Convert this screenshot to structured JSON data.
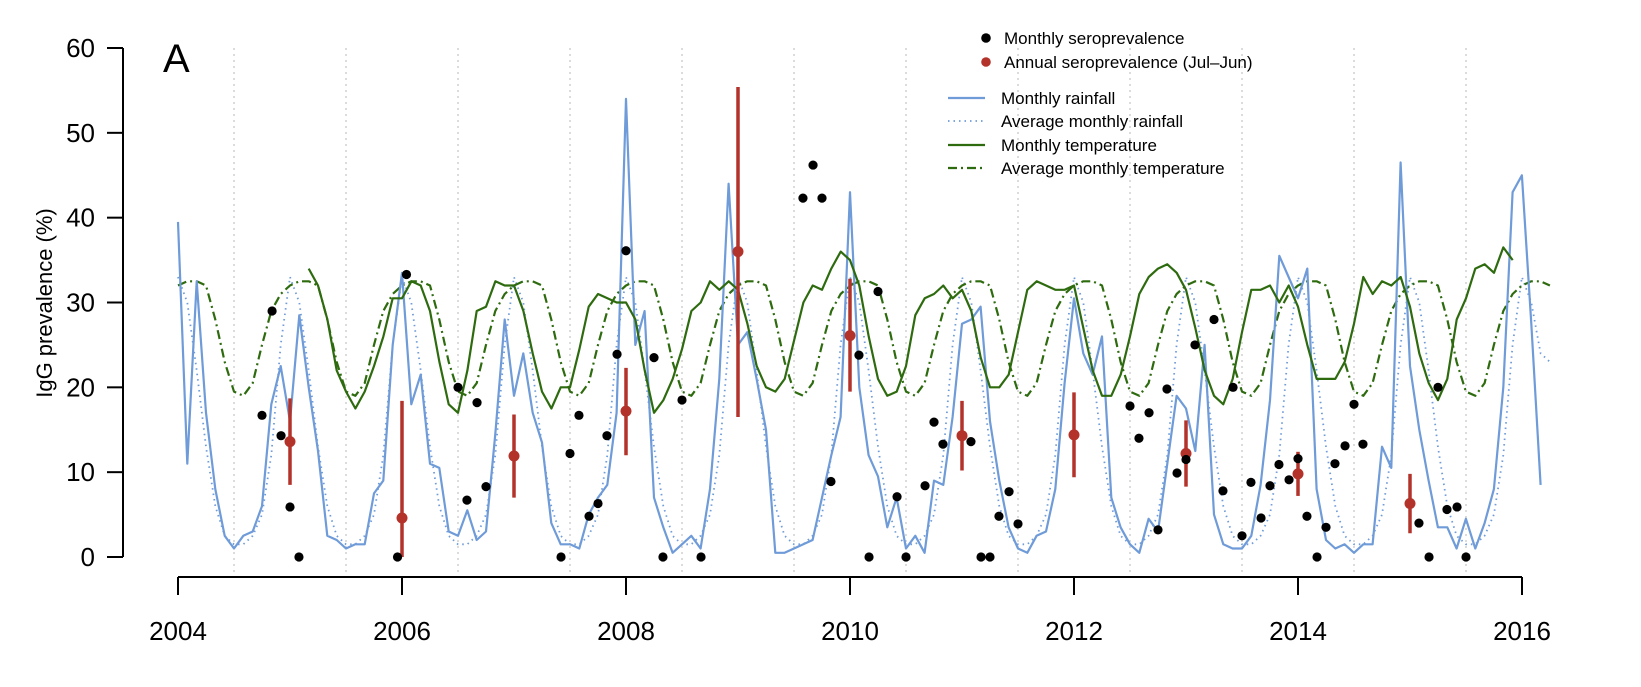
{
  "panel_label": "A",
  "colors": {
    "rainfall": "#6f9bd8",
    "temperature": "#2e6b0f",
    "annual": "#b3322a",
    "monthly_sero": "#000000",
    "year_grid": "#c8c8c8"
  },
  "chart_data": {
    "type": "line",
    "ylabel": "IgG prevalence (%)",
    "xlim": [
      2004,
      2016.25
    ],
    "ylim": [
      0,
      60
    ],
    "x_ticks": [
      2004,
      2006,
      2008,
      2010,
      2012,
      2014,
      2016
    ],
    "x_tick_labels": [
      "2004",
      "2006",
      "2008",
      "2010",
      "2012",
      "2014",
      "2016"
    ],
    "y_ticks": [
      0,
      10,
      20,
      30,
      40,
      50,
      60
    ],
    "y_tick_labels": [
      "0",
      "10",
      "20",
      "30",
      "40",
      "50",
      "60"
    ],
    "vertical_gridlines": "dotted, mid-year (July) each year",
    "legend_position": "top-right",
    "legend": [
      {
        "label": "Monthly seroprevalence",
        "kind": "point",
        "color": "#000000"
      },
      {
        "label": "Annual seroprevalence (Jul–Jun)",
        "kind": "point",
        "color": "#b3322a"
      },
      {
        "label": "Monthly rainfall",
        "kind": "line",
        "color": "#6f9bd8",
        "dash": "solid"
      },
      {
        "label": "Average monthly rainfall",
        "kind": "line",
        "color": "#6f9bd8",
        "dash": "dotted"
      },
      {
        "label": "Monthly temperature",
        "kind": "line",
        "color": "#2e6b0f",
        "dash": "solid"
      },
      {
        "label": "Average monthly temperature",
        "kind": "line",
        "color": "#2e6b0f",
        "dash": "dashdot"
      }
    ],
    "series": [
      {
        "name": "Monthly rainfall",
        "style": "solid",
        "color": "#6f9bd8",
        "x0": 2004.0,
        "dx": 0.08333,
        "values": [
          39.5,
          11,
          32.5,
          17,
          8,
          2.5,
          1,
          2.5,
          3,
          6,
          18,
          22.5,
          16,
          28.5,
          20,
          12.5,
          2.5,
          2,
          1,
          1.5,
          1.5,
          7.5,
          9,
          25,
          33.5,
          18,
          21.5,
          11,
          10.5,
          3,
          2.5,
          5.5,
          2,
          3,
          14.5,
          28,
          19,
          24,
          17,
          13.5,
          4,
          1.5,
          1.5,
          1,
          5,
          7,
          8.5,
          17,
          54,
          25,
          29,
          7,
          3.5,
          0.5,
          1.5,
          2.5,
          1,
          8,
          21,
          44,
          25,
          26.5,
          21,
          15,
          0.5,
          0.5,
          1,
          1.5,
          2,
          7,
          12,
          16.5,
          43,
          20,
          12,
          9.5,
          3.5,
          7,
          1,
          2.5,
          0.5,
          9,
          8.5,
          16.5,
          27.5,
          28,
          29.5,
          16,
          9,
          3.5,
          1,
          0.5,
          2.5,
          3,
          8,
          20.5,
          30.5,
          24,
          21.5,
          26,
          7,
          3.5,
          1.5,
          0.5,
          4.5,
          3,
          11,
          19,
          17.5,
          12.5,
          25,
          5,
          1.5,
          1,
          1,
          2.5,
          8.5,
          18.5,
          35.5,
          33,
          30.5,
          34,
          8,
          2,
          1,
          1.5,
          0.5,
          1.5,
          1.5,
          13,
          10.5,
          46.5,
          22.5,
          15,
          9,
          3.5,
          3.5,
          1,
          4.5,
          1,
          4,
          8,
          20,
          43,
          45,
          27.5,
          8.5
        ]
      },
      {
        "name": "Average monthly rainfall",
        "style": "dotted",
        "color": "#6f9bd8",
        "x0": 2004.0,
        "dx": 0.08333,
        "values": [
          33,
          30,
          22,
          13,
          6,
          2.5,
          1.5,
          1.5,
          2.5,
          5,
          12,
          25,
          33,
          30,
          22,
          13,
          6,
          2.5,
          1.5,
          1.5,
          2.5,
          5,
          12,
          25,
          33,
          30,
          22,
          13,
          6,
          2.5,
          1.5,
          1.5,
          2.5,
          5,
          12,
          25,
          33,
          30,
          22,
          13,
          6,
          2.5,
          1.5,
          1.5,
          2.5,
          5,
          12,
          25,
          33,
          30,
          22,
          13,
          6,
          2.5,
          1.5,
          1.5,
          2.5,
          5,
          12,
          25,
          33,
          30,
          22,
          13,
          6,
          2.5,
          1.5,
          1.5,
          2.5,
          5,
          12,
          25,
          33,
          30,
          22,
          13,
          6,
          2.5,
          1.5,
          1.5,
          2.5,
          5,
          12,
          25,
          33,
          30,
          22,
          13,
          6,
          2.5,
          1.5,
          1.5,
          2.5,
          5,
          12,
          25,
          33,
          30,
          22,
          13,
          6,
          2.5,
          1.5,
          1.5,
          2.5,
          5,
          12,
          25,
          33,
          30,
          22,
          13,
          6,
          2.5,
          1.5,
          1.5,
          2.5,
          5,
          12,
          25,
          33,
          30,
          22,
          13,
          6,
          2.5,
          1.5,
          1.5,
          2.5,
          5,
          12,
          25,
          33,
          30,
          22,
          13,
          6,
          2.5,
          1.5,
          1.5,
          2.5,
          5,
          12,
          25,
          33,
          30,
          24,
          23
        ]
      },
      {
        "name": "Monthly temperature",
        "style": "solid",
        "color": "#2e6b0f",
        "x0": 2005.167,
        "dx": 0.08333,
        "values": [
          34,
          32,
          28,
          22,
          19.5,
          17.5,
          19.5,
          22.5,
          26,
          30.5,
          30.5,
          32.5,
          32,
          29,
          23,
          18,
          17,
          22,
          29,
          29.5,
          32.5,
          32,
          32,
          29,
          24,
          19.5,
          17.5,
          20,
          20,
          24.5,
          29.5,
          31,
          30.5,
          30,
          30,
          28,
          22,
          17,
          18.5,
          21,
          24.5,
          29,
          30,
          32.5,
          31.5,
          32.5,
          31.5,
          27.5,
          22.5,
          20,
          19.5,
          21,
          25.5,
          30,
          32,
          31.5,
          34,
          36,
          35,
          32,
          26,
          21,
          19,
          19.5,
          22.5,
          28.5,
          30.5,
          31,
          32,
          30.5,
          31.5,
          29,
          23.5,
          20,
          20,
          21.5,
          26.5,
          31.5,
          32.5,
          32,
          31.5,
          31.5,
          32,
          27,
          22,
          19,
          19,
          21.5,
          26,
          31,
          33,
          34,
          34.5,
          33.5,
          31.5,
          27,
          22,
          19,
          18,
          21,
          26.5,
          31.5,
          31.5,
          32,
          30,
          32,
          29.5,
          25,
          21,
          21,
          21,
          23,
          27.5,
          33,
          31,
          32.5,
          32,
          33,
          29.5,
          24,
          20.5,
          18.5,
          21,
          28,
          30.5,
          34,
          34.5,
          33.5,
          36.5,
          35
        ]
      },
      {
        "name": "Average monthly temperature",
        "style": "dashdot",
        "color": "#2e6b0f",
        "x0": 2004.0,
        "dx": 0.08333,
        "values": [
          32,
          32.5,
          32.5,
          32,
          28,
          23,
          19.5,
          19,
          20.5,
          25,
          29,
          31,
          32,
          32.5,
          32.5,
          32,
          28,
          23,
          19.5,
          19,
          20.5,
          25,
          29,
          31,
          32,
          32.5,
          32.5,
          32,
          28,
          23,
          19.5,
          19,
          20.5,
          25,
          29,
          31,
          32,
          32.5,
          32.5,
          32,
          28,
          23,
          19.5,
          19,
          20.5,
          25,
          29,
          31,
          32,
          32.5,
          32.5,
          32,
          28,
          23,
          19.5,
          19,
          20.5,
          25,
          29,
          31,
          32,
          32.5,
          32.5,
          32,
          28,
          23,
          19.5,
          19,
          20.5,
          25,
          29,
          31,
          32,
          32.5,
          32.5,
          32,
          28,
          23,
          19.5,
          19,
          20.5,
          25,
          29,
          31,
          32,
          32.5,
          32.5,
          32,
          28,
          23,
          19.5,
          19,
          20.5,
          25,
          29,
          31,
          32,
          32.5,
          32.5,
          32,
          28,
          23,
          19.5,
          19,
          20.5,
          25,
          29,
          31,
          32,
          32.5,
          32.5,
          32,
          28,
          23,
          19.5,
          19,
          20.5,
          25,
          29,
          31,
          32,
          32.5,
          32.5,
          32,
          28,
          23,
          19.5,
          19,
          20.5,
          25,
          29,
          31,
          32,
          32.5,
          32.5,
          32,
          28,
          23,
          19.5,
          19,
          20.5,
          25,
          29,
          31,
          32,
          32.5,
          32.5,
          32
        ]
      }
    ],
    "monthly_seroprevalence": [
      [
        2004.75,
        16.7
      ],
      [
        2004.84,
        29
      ],
      [
        2004.92,
        14.3
      ],
      [
        2005.0,
        5.9
      ],
      [
        2005.08,
        0
      ],
      [
        2005.96,
        0
      ],
      [
        2006.04,
        33.3
      ],
      [
        2006.5,
        20
      ],
      [
        2006.58,
        6.7
      ],
      [
        2006.67,
        18.2
      ],
      [
        2006.75,
        8.3
      ],
      [
        2007.42,
        0
      ],
      [
        2007.5,
        12.2
      ],
      [
        2007.58,
        16.7
      ],
      [
        2007.67,
        4.8
      ],
      [
        2007.75,
        6.3
      ],
      [
        2007.83,
        14.3
      ],
      [
        2007.92,
        23.9
      ],
      [
        2008.0,
        36.1
      ],
      [
        2008.25,
        23.5
      ],
      [
        2008.33,
        0
      ],
      [
        2008.5,
        18.5
      ],
      [
        2008.67,
        0
      ],
      [
        2009.58,
        42.3
      ],
      [
        2009.67,
        46.2
      ],
      [
        2009.75,
        42.3
      ],
      [
        2009.83,
        8.9
      ],
      [
        2010.08,
        23.8
      ],
      [
        2010.17,
        0
      ],
      [
        2010.25,
        31.3
      ],
      [
        2010.42,
        7.1
      ],
      [
        2010.5,
        0
      ],
      [
        2010.67,
        8.4
      ],
      [
        2010.75,
        15.9
      ],
      [
        2010.83,
        13.3
      ],
      [
        2011.08,
        13.6
      ],
      [
        2011.17,
        0
      ],
      [
        2011.25,
        0
      ],
      [
        2011.33,
        4.8
      ],
      [
        2011.42,
        7.7
      ],
      [
        2011.5,
        3.9
      ],
      [
        2012.5,
        17.8
      ],
      [
        2012.58,
        14
      ],
      [
        2012.67,
        17
      ],
      [
        2012.75,
        3.2
      ],
      [
        2012.83,
        19.8
      ],
      [
        2012.92,
        9.9
      ],
      [
        2013.0,
        11.5
      ],
      [
        2013.08,
        25
      ],
      [
        2013.25,
        28
      ],
      [
        2013.33,
        7.8
      ],
      [
        2013.42,
        20
      ],
      [
        2013.5,
        2.5
      ],
      [
        2013.58,
        8.8
      ],
      [
        2013.67,
        4.6
      ],
      [
        2013.75,
        8.4
      ],
      [
        2013.83,
        10.9
      ],
      [
        2013.92,
        9.1
      ],
      [
        2014.0,
        11.6
      ],
      [
        2014.08,
        4.8
      ],
      [
        2014.17,
        0
      ],
      [
        2014.25,
        3.5
      ],
      [
        2014.33,
        11
      ],
      [
        2014.42,
        13.1
      ],
      [
        2014.5,
        18
      ],
      [
        2014.58,
        13.3
      ],
      [
        2015.08,
        4
      ],
      [
        2015.17,
        0
      ],
      [
        2015.25,
        20
      ],
      [
        2015.33,
        5.6
      ],
      [
        2015.42,
        5.9
      ],
      [
        2015.5,
        0
      ]
    ],
    "annual_seroprevalence": [
      {
        "x": 2005.0,
        "y": 13.6,
        "lo": 8.5,
        "hi": 18.7
      },
      {
        "x": 2006.0,
        "y": 4.6,
        "lo": 0,
        "hi": 18.4
      },
      {
        "x": 2007.0,
        "y": 11.9,
        "lo": 7,
        "hi": 16.8
      },
      {
        "x": 2008.0,
        "y": 17.2,
        "lo": 12,
        "hi": 22.3
      },
      {
        "x": 2009.0,
        "y": 36,
        "lo": 16.5,
        "hi": 55.4
      },
      {
        "x": 2010.0,
        "y": 26.1,
        "lo": 19.5,
        "hi": 32.8
      },
      {
        "x": 2011.0,
        "y": 14.3,
        "lo": 10.2,
        "hi": 18.4
      },
      {
        "x": 2012.0,
        "y": 14.4,
        "lo": 9.4,
        "hi": 19.4
      },
      {
        "x": 2013.0,
        "y": 12.2,
        "lo": 8.3,
        "hi": 16.1
      },
      {
        "x": 2014.0,
        "y": 9.8,
        "lo": 7.2,
        "hi": 12.4
      },
      {
        "x": 2015.0,
        "y": 6.3,
        "lo": 2.8,
        "hi": 9.8
      }
    ]
  }
}
